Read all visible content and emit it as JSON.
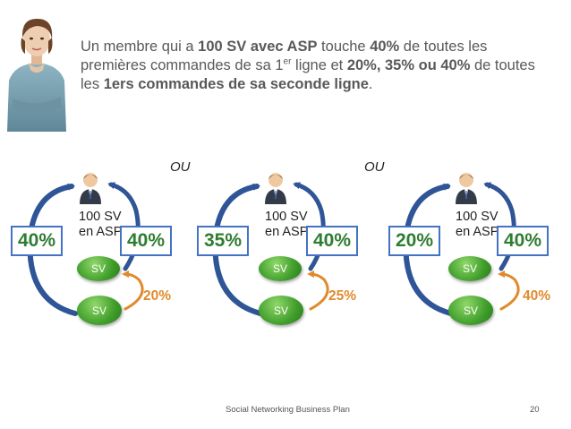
{
  "intro": {
    "p1": "Un membre qui a ",
    "b1": "100 SV avec ASP",
    "p2": " touche ",
    "b2": "40%",
    "p3": " de toutes les premières commandes de sa 1",
    "sup": "er",
    "p4": " ligne et ",
    "b3": "20%, 35% ou 40%",
    "p5": " de toutes les ",
    "b4": "1ers commandes de sa seconde ligne",
    "p6": "."
  },
  "separators": [
    "OU",
    "OU"
  ],
  "groups": [
    {
      "member_line1": "100 SV",
      "member_line2": "en ASP",
      "left_pct": "40%",
      "right_pct": "40%",
      "top_node": "SV",
      "bottom_node": "SV",
      "second_line_pct": "20%"
    },
    {
      "member_line1": "100 SV",
      "member_line2": "en ASP",
      "left_pct": "35%",
      "right_pct": "40%",
      "top_node": "SV",
      "bottom_node": "SV",
      "second_line_pct": "25%"
    },
    {
      "member_line1": "100 SV",
      "member_line2": "en ASP",
      "left_pct": "20%",
      "right_pct": "40%",
      "top_node": "SV",
      "bottom_node": "SV",
      "second_line_pct": "40%"
    }
  ],
  "footer": {
    "text": "Social Networking Business Plan",
    "page": "20"
  },
  "colors": {
    "box_border": "#4472c4",
    "pct_green": "#2e7d32",
    "orange": "#e08a2c",
    "arrow_blue": "#2f5597"
  }
}
